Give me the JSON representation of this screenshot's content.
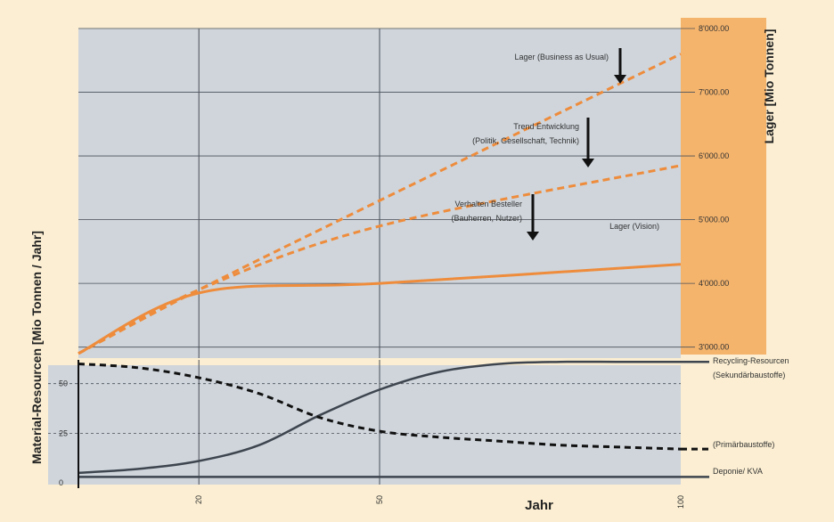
{
  "colors": {
    "background": "#fbeed2",
    "panel": "#cfd5db",
    "orange_axis": "#f5b46c",
    "orange_line": "#ee8c3c",
    "grid": "#4a4f57",
    "dark_line": "#3e454e",
    "dashed_black": "#111111"
  },
  "chart_data": [
    {
      "type": "line",
      "panel": "upper",
      "ylabel": "Lager [Mio Tonnen]",
      "ylim": [
        2800,
        8000
      ],
      "yticks": [
        3000,
        4000,
        5000,
        6000,
        7000,
        8000
      ],
      "ytick_labels": [
        "3'000.00",
        "4'000.00",
        "5'000.00",
        "6'000.00",
        "7'000.00",
        "8'000.00"
      ],
      "xlim": [
        0,
        100
      ],
      "x": [
        0,
        20,
        50,
        100
      ],
      "series": [
        {
          "name": "Lager (Business as Usual)",
          "style": "dashed",
          "values": [
            2900,
            3900,
            5300,
            7600
          ]
        },
        {
          "name": "Trend Entwicklung (Politik, Gesellschaft, Technik)",
          "style": "dashed",
          "values": [
            2900,
            3900,
            4900,
            5850
          ]
        },
        {
          "name": "Lager (Vision)",
          "style": "solid",
          "values": [
            2900,
            3850,
            4000,
            4300
          ]
        }
      ],
      "annotations": [
        {
          "text": "Lager (Business as Usual)",
          "x": 91
        },
        {
          "text": "Trend Entwicklung",
          "text2": "(Politik, Gesellschaft, Technik)",
          "x": 85
        },
        {
          "text": "Verhalten Besteller",
          "text2": "(Bauherren, Nutzer)",
          "x": 76
        },
        {
          "text": "Lager (Vision)",
          "x": 95
        }
      ]
    },
    {
      "type": "line",
      "panel": "lower",
      "xlabel": "Jahr",
      "ylabel": "Material-Resourcen [Mio Tonnen / Jahr]",
      "xlim": [
        0,
        100
      ],
      "ylim": [
        0,
        62
      ],
      "xticks": [
        20,
        50,
        100
      ],
      "xtick_labels": [
        "20",
        "50",
        "100"
      ],
      "yticks": [
        0,
        25,
        50
      ],
      "ytick_labels": [
        "0",
        "25",
        "50"
      ],
      "series": [
        {
          "name": "Recycling-Resourcen (Sekundärbaustoffe)",
          "style": "solid",
          "x": [
            0,
            10,
            20,
            30,
            40,
            50,
            60,
            70,
            80,
            90,
            100
          ],
          "values": [
            5,
            7,
            11,
            19,
            34,
            47,
            56,
            60,
            61,
            61,
            61
          ]
        },
        {
          "name": "(Primärbaustoffe)",
          "style": "dashed",
          "x": [
            0,
            10,
            20,
            30,
            40,
            50,
            60,
            70,
            80,
            90,
            100
          ],
          "values": [
            60,
            58,
            53,
            45,
            33,
            26,
            23,
            21,
            19,
            18,
            17
          ]
        },
        {
          "name": "Deponie/ KVA",
          "style": "solid",
          "x": [
            0,
            100
          ],
          "values": [
            3,
            3
          ]
        }
      ],
      "series_labels": [
        [
          "Recycling-Resourcen",
          "(Sekundärbaustoffe)"
        ],
        [
          "(Primärbaustoffe)"
        ],
        [
          "Deponie/ KVA"
        ]
      ]
    }
  ]
}
